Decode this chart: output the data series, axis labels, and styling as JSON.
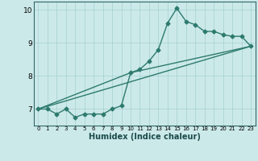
{
  "background_color": "#cce9e9",
  "grid_color": "#aad4d4",
  "line_color": "#2d7a6e",
  "xlabel": "Humidex (Indice chaleur)",
  "xlim": [
    -0.5,
    23.5
  ],
  "ylim": [
    6.5,
    10.25
  ],
  "yticks": [
    7,
    8,
    9,
    10
  ],
  "xticks": [
    0,
    1,
    2,
    3,
    4,
    5,
    6,
    7,
    8,
    9,
    10,
    11,
    12,
    13,
    14,
    15,
    16,
    17,
    18,
    19,
    20,
    21,
    22,
    23
  ],
  "series1_x": [
    0,
    1,
    2,
    3,
    4,
    5,
    6,
    7,
    8,
    9,
    10,
    11,
    12,
    13,
    14,
    15,
    16,
    17,
    18,
    19,
    20,
    21,
    22,
    23
  ],
  "series1_y": [
    7.0,
    7.0,
    6.85,
    7.0,
    6.75,
    6.85,
    6.85,
    6.85,
    7.0,
    7.1,
    8.1,
    8.2,
    8.45,
    8.8,
    9.6,
    10.05,
    9.65,
    9.55,
    9.35,
    9.35,
    9.25,
    9.2,
    9.2,
    8.9
  ],
  "series2_x": [
    0,
    23
  ],
  "series2_y": [
    7.0,
    8.9
  ],
  "series3_x": [
    0,
    10,
    23
  ],
  "series3_y": [
    7.0,
    8.1,
    8.9
  ],
  "marker": "D",
  "markersize": 2.5,
  "linewidth": 1.0,
  "xlabel_fontsize": 7,
  "tick_fontsize_x": 5,
  "tick_fontsize_y": 6.5
}
